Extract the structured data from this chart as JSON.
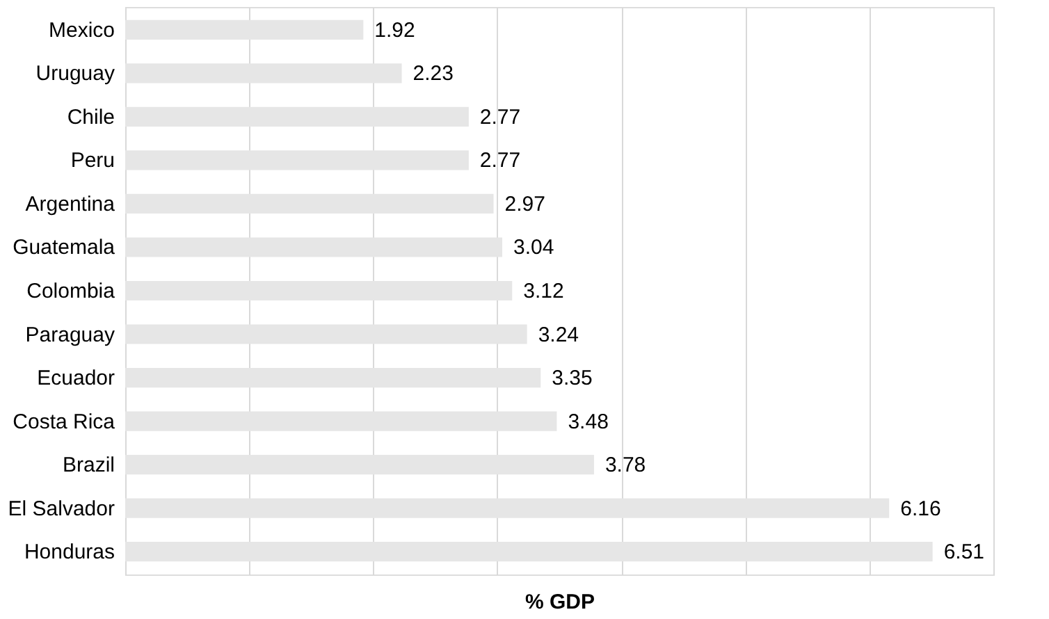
{
  "chart_data": {
    "type": "bar",
    "orientation": "horizontal",
    "xlabel": "% GDP",
    "categories": [
      "Mexico",
      "Uruguay",
      "Chile",
      "Peru",
      "Argentina",
      "Guatemala",
      "Colombia",
      "Paraguay",
      "Ecuador",
      "Costa Rica",
      "Brazil",
      "El Salvador",
      "Honduras"
    ],
    "values": [
      1.92,
      2.23,
      2.77,
      2.77,
      2.97,
      3.04,
      3.12,
      3.24,
      3.35,
      3.48,
      3.78,
      6.16,
      6.51
    ],
    "color": "#e6e6e6",
    "data_labels": true,
    "grid": "x",
    "tick_labels": "y",
    "xlim": [
      0,
      7
    ],
    "xticks": [
      {
        "value": 0,
        "label": null
      },
      {
        "value": 1,
        "label": null
      },
      {
        "value": 2,
        "label": null
      },
      {
        "value": 3,
        "label": null
      },
      {
        "value": 4,
        "label": null
      },
      {
        "value": 5,
        "label": null
      },
      {
        "value": 6,
        "label": null
      },
      {
        "value": 7,
        "label": null
      }
    ]
  }
}
